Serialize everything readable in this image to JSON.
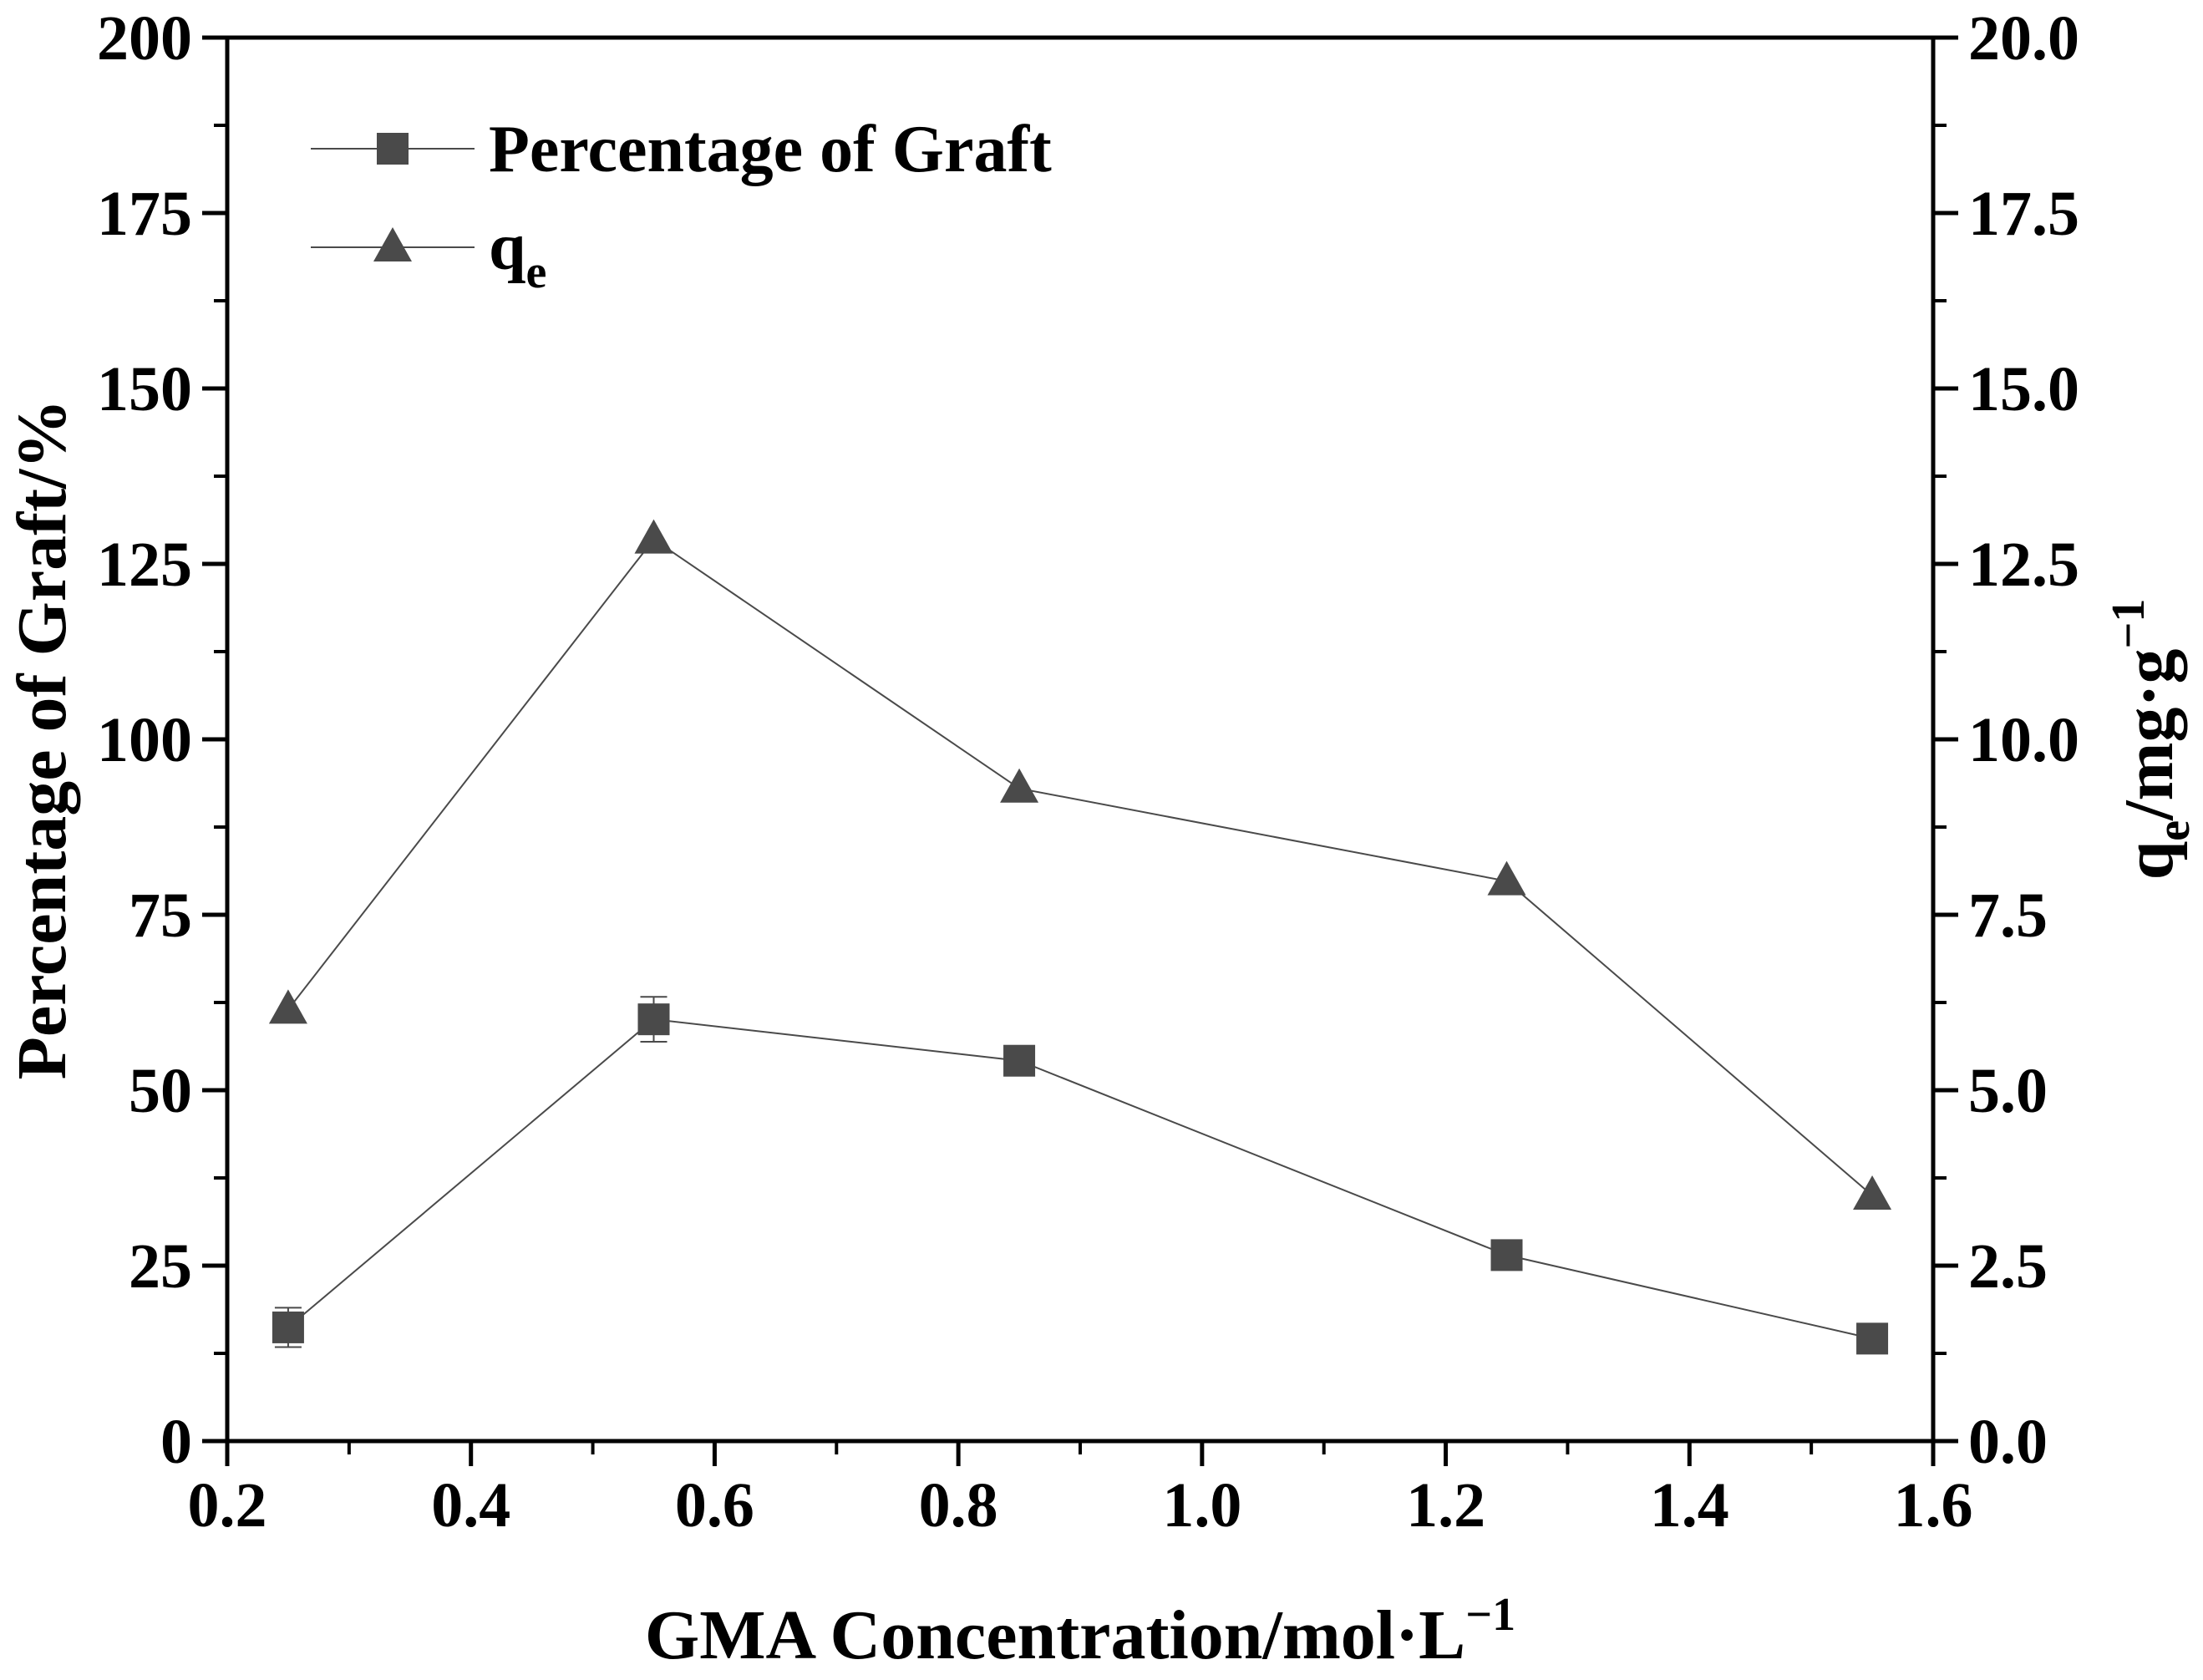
{
  "chart_data": {
    "type": "line",
    "title": "",
    "x": [
      0.25,
      0.55,
      0.85,
      1.25,
      1.55
    ],
    "xlim": [
      0.2,
      1.6
    ],
    "xticks": [
      "0.2",
      "0.4",
      "0.6",
      "0.8",
      "1.0",
      "1.2",
      "1.4",
      "1.6"
    ],
    "xlabel": {
      "main": "GMA Concentration/mol·L",
      "sup": "−1"
    },
    "ylabel_left": "Percentage of Graft/%",
    "ylim_left": [
      0,
      200
    ],
    "yticks_left": [
      "0",
      "25",
      "50",
      "75",
      "100",
      "125",
      "150",
      "175",
      "200"
    ],
    "ylabel_right": {
      "q": "q",
      "sub": "e",
      "unit": "/mg·g",
      "sup": "−1"
    },
    "ylim_right": [
      0,
      20
    ],
    "yticks_right": [
      "0.0",
      "2.5",
      "5.0",
      "7.5",
      "10.0",
      "12.5",
      "15.0",
      "17.5",
      "20.0"
    ],
    "series": [
      {
        "name": "Percentage of Graft",
        "axis": "left",
        "marker": "square",
        "values": [
          16.2,
          60.1,
          54.2,
          26.5,
          14.6
        ],
        "errors": [
          2.8,
          3.2,
          1.0,
          0.8,
          0.6
        ]
      },
      {
        "name": "q",
        "name_sub": "e",
        "axis": "right",
        "marker": "triangle",
        "values": [
          6.15,
          12.85,
          9.3,
          7.98,
          3.5
        ]
      }
    ],
    "legend_position": "top-left",
    "grid": false,
    "color": "#4a4a4a"
  }
}
